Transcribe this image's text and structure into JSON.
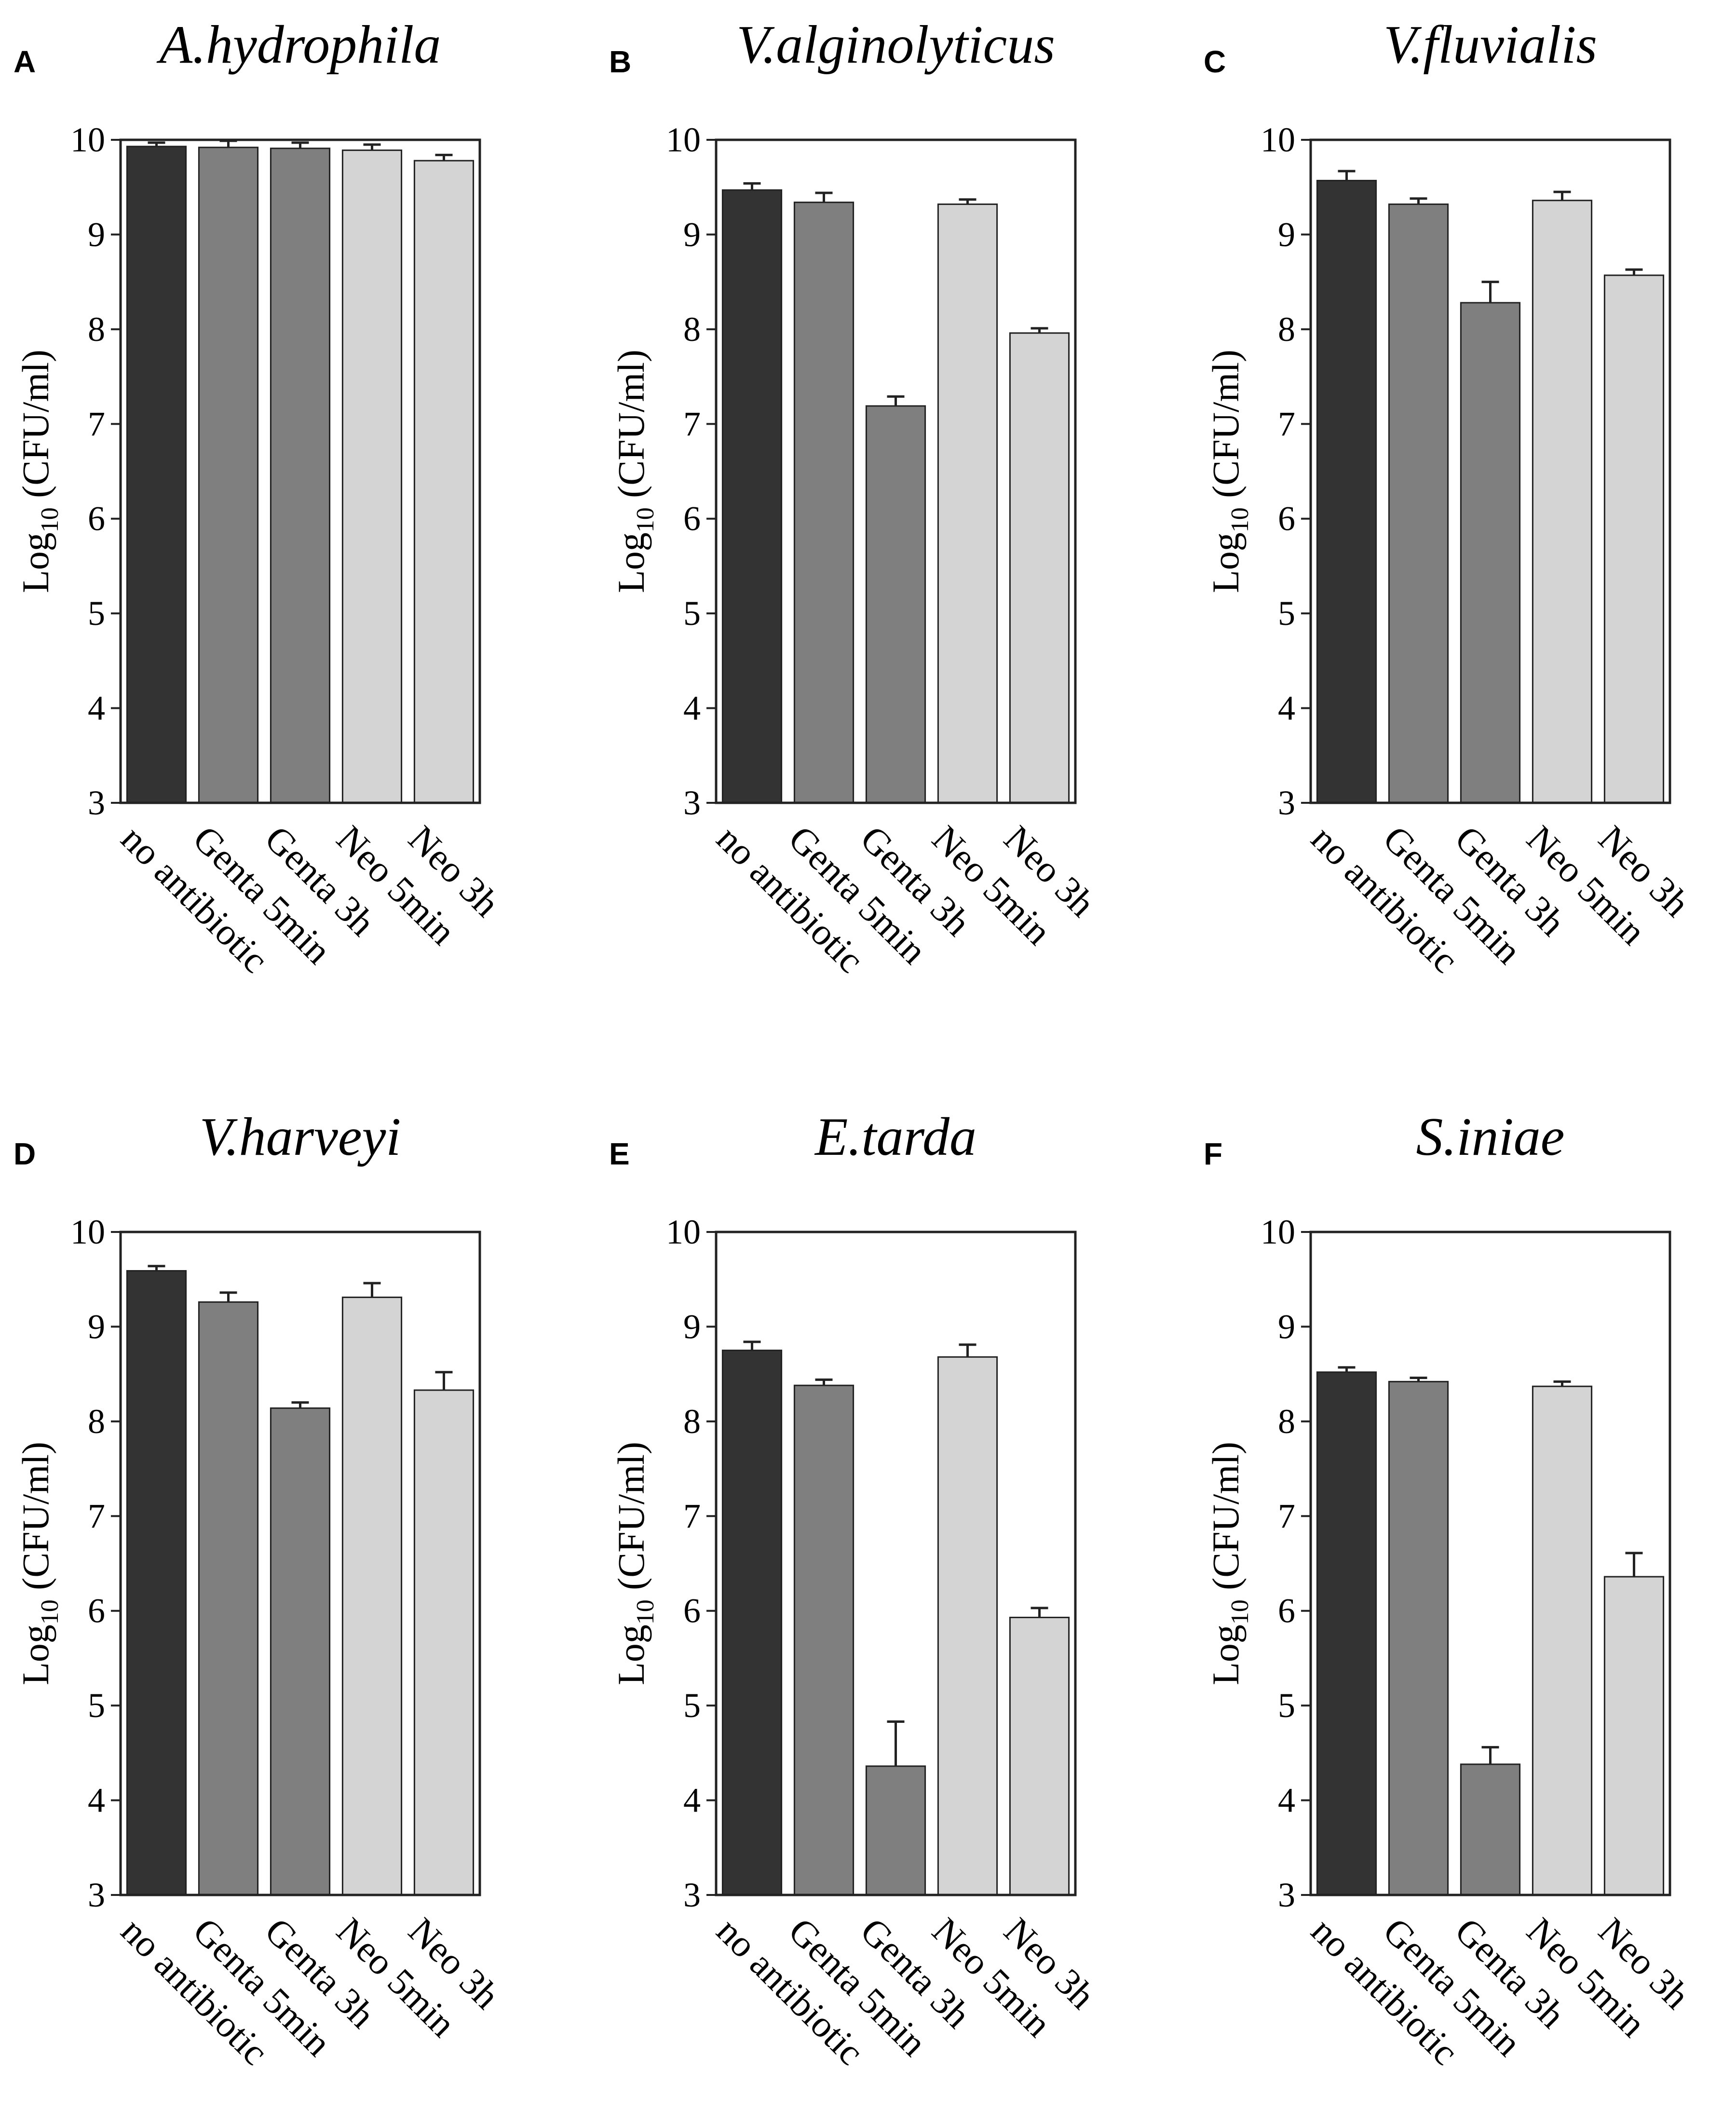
{
  "figure": {
    "colors": {
      "no antibiotic": "#333333",
      "Genta 5min": "#7f7f7f",
      "Genta 3h": "#7f7f7f",
      "Neo 5min": "#d4d4d4",
      "Neo 3h": "#d4d4d4"
    }
  },
  "chart_data": [
    {
      "panel": "A",
      "type": "bar",
      "title": "A.hydrophila",
      "ylabel_main": "Log",
      "ylabel_sub": "10",
      "ylabel_unit": " (CFU/ml)",
      "ylim": [
        3,
        10
      ],
      "yticks": [
        "3",
        "4",
        "5",
        "6",
        "7",
        "8",
        "9",
        "10"
      ],
      "categories": [
        "no antibiotic",
        "Genta 5min",
        "Genta 3h",
        "Neo 5min",
        "Neo 3h"
      ],
      "values": [
        9.93,
        9.92,
        9.91,
        9.89,
        9.78
      ],
      "errors": [
        0.04,
        0.07,
        0.06,
        0.06,
        0.06
      ]
    },
    {
      "panel": "B",
      "type": "bar",
      "title": "V.alginolyticus",
      "ylabel_main": "Log",
      "ylabel_sub": "10",
      "ylabel_unit": " (CFU/ml)",
      "ylim": [
        3,
        10
      ],
      "yticks": [
        "3",
        "4",
        "5",
        "6",
        "7",
        "8",
        "9",
        "10"
      ],
      "categories": [
        "no antibiotic",
        "Genta 5min",
        "Genta 3h",
        "Neo 5min",
        "Neo 3h"
      ],
      "values": [
        9.47,
        9.34,
        7.19,
        9.32,
        7.96
      ],
      "errors": [
        0.07,
        0.1,
        0.1,
        0.05,
        0.05
      ]
    },
    {
      "panel": "C",
      "type": "bar",
      "title": "V.fluvialis",
      "ylabel_main": "Log",
      "ylabel_sub": "10",
      "ylabel_unit": " (CFU/ml)",
      "ylim": [
        3,
        10
      ],
      "yticks": [
        "3",
        "4",
        "5",
        "6",
        "7",
        "8",
        "9",
        "10"
      ],
      "categories": [
        "no antibiotic",
        "Genta 5min",
        "Genta 3h",
        "Neo 5min",
        "Neo 3h"
      ],
      "values": [
        9.57,
        9.32,
        8.28,
        9.36,
        8.57
      ],
      "errors": [
        0.1,
        0.06,
        0.22,
        0.09,
        0.06
      ]
    },
    {
      "panel": "D",
      "type": "bar",
      "title": "V.harveyi",
      "ylabel_main": "Log",
      "ylabel_sub": "10",
      "ylabel_unit": " (CFU/ml)",
      "ylim": [
        3,
        10
      ],
      "yticks": [
        "3",
        "4",
        "5",
        "6",
        "7",
        "8",
        "9",
        "10"
      ],
      "categories": [
        "no antibiotic",
        "Genta 5min",
        "Genta 3h",
        "Neo 5min",
        "Neo 3h"
      ],
      "values": [
        9.59,
        9.26,
        8.14,
        9.31,
        8.33
      ],
      "errors": [
        0.05,
        0.1,
        0.06,
        0.15,
        0.19
      ]
    },
    {
      "panel": "E",
      "type": "bar",
      "title": "E.tarda",
      "ylabel_main": "Log",
      "ylabel_sub": "10",
      "ylabel_unit": " (CFU/ml)",
      "ylim": [
        3,
        10
      ],
      "yticks": [
        "3",
        "4",
        "5",
        "6",
        "7",
        "8",
        "9",
        "10"
      ],
      "categories": [
        "no antibiotic",
        "Genta 5min",
        "Genta 3h",
        "Neo 5min",
        "Neo 3h"
      ],
      "values": [
        8.75,
        8.38,
        4.36,
        8.68,
        5.93
      ],
      "errors": [
        0.09,
        0.06,
        0.47,
        0.13,
        0.1
      ]
    },
    {
      "panel": "F",
      "type": "bar",
      "title": "S.iniae",
      "ylabel_main": "Log",
      "ylabel_sub": "10",
      "ylabel_unit": " (CFU/ml)",
      "ylim": [
        3,
        10
      ],
      "yticks": [
        "3",
        "4",
        "5",
        "6",
        "7",
        "8",
        "9",
        "10"
      ],
      "categories": [
        "no antibiotic",
        "Genta 5min",
        "Genta 3h",
        "Neo 5min",
        "Neo 3h"
      ],
      "values": [
        8.52,
        8.42,
        4.38,
        8.37,
        6.36
      ],
      "errors": [
        0.05,
        0.04,
        0.18,
        0.05,
        0.25
      ]
    }
  ]
}
